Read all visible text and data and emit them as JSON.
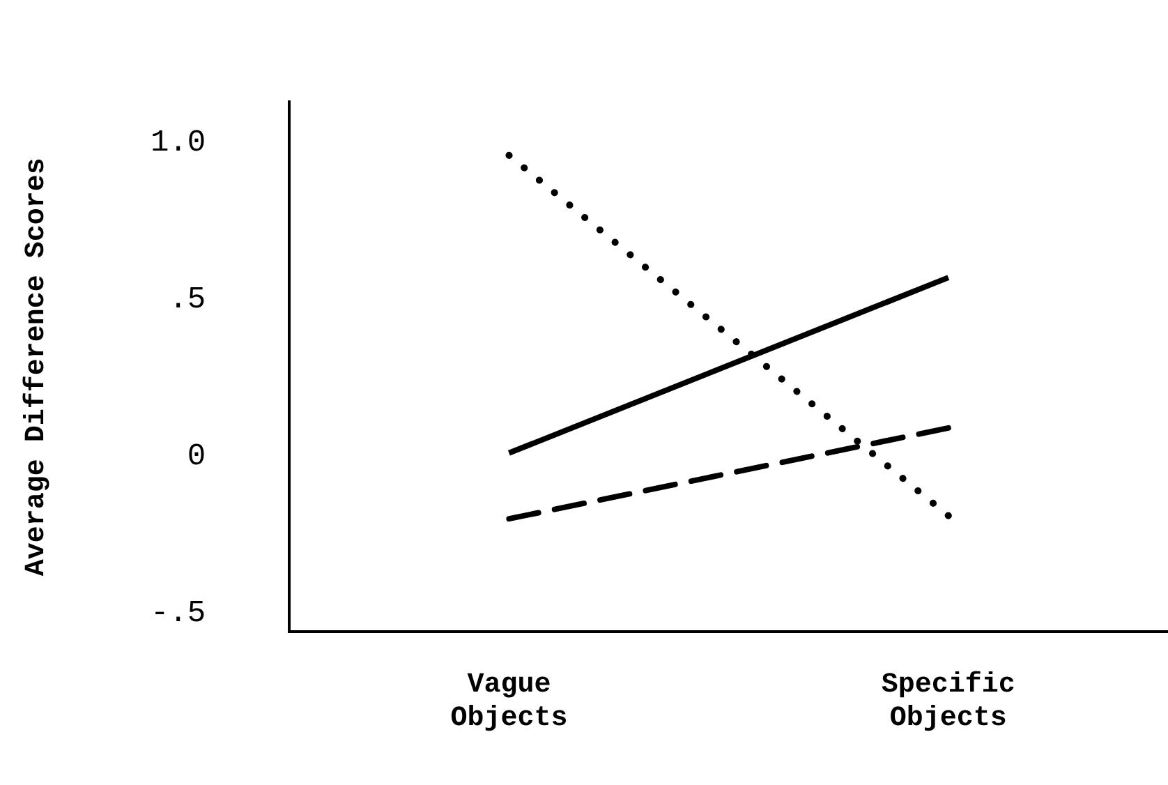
{
  "chart_data": {
    "type": "line",
    "ylabel": "Average Difference Scores",
    "categories": [
      "Vague\nObjects",
      "Specific\nObjects"
    ],
    "series": [
      {
        "color": "#000000",
        "line_style": "solid",
        "values": [
          0.01,
          0.57
        ]
      },
      {
        "color": "#000000",
        "line_style": "dashed",
        "values": [
          -0.2,
          0.09
        ]
      },
      {
        "color": "#000000",
        "line_style": "dotted",
        "values": [
          0.96,
          -0.19
        ]
      }
    ],
    "ylim": [
      -0.56,
      1.13
    ],
    "yticks": [
      {
        "value": -0.5,
        "label": "-.5"
      },
      {
        "value": 0,
        "label": "0"
      },
      {
        "value": 0.5,
        "label": ".5"
      },
      {
        "value": 1,
        "label": "1.0"
      }
    ],
    "grid": false,
    "legend": false,
    "marker": "none"
  }
}
